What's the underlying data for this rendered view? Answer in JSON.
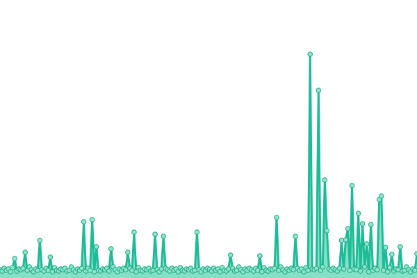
{
  "chart_data": {
    "type": "line",
    "title": "",
    "xlabel": "",
    "ylabel": "",
    "grid": false,
    "area_fill": true,
    "markers": true,
    "ylim": [
      0,
      320
    ],
    "colors": {
      "line": "#1dbb96",
      "marker_fill": "#8fe3c9",
      "marker_stroke": "#1aa987",
      "area": "#86dfc7"
    },
    "series": [
      {
        "values": [
          4,
          2,
          6,
          3,
          5,
          1,
          7,
          20,
          2,
          5,
          4,
          6,
          29,
          3,
          8,
          4,
          1,
          5,
          3,
          46,
          4,
          2,
          6,
          3,
          22,
          1,
          7,
          3,
          2,
          5,
          4,
          6,
          2,
          3,
          8,
          4,
          1,
          5,
          3,
          6,
          73,
          2,
          6,
          3,
          76,
          1,
          37,
          3,
          2,
          5,
          4,
          6,
          2,
          34,
          8,
          4,
          1,
          5,
          3,
          6,
          4,
          29,
          6,
          3,
          58,
          1,
          7,
          3,
          2,
          5,
          4,
          6,
          2,
          3,
          55,
          4,
          1,
          5,
          52,
          6,
          4,
          2,
          6,
          3,
          5,
          1,
          7,
          3,
          2,
          5,
          4,
          6,
          2,
          3,
          58,
          4,
          1,
          5,
          3,
          6,
          4,
          2,
          6,
          3,
          5,
          1,
          7,
          3,
          2,
          5,
          25,
          6,
          2,
          3,
          8,
          4,
          1,
          5,
          3,
          6,
          4,
          2,
          6,
          3,
          24,
          1,
          7,
          3,
          2,
          5,
          4,
          6,
          79,
          3,
          8,
          4,
          1,
          5,
          3,
          6,
          4,
          52,
          6,
          3,
          5,
          1,
          7,
          3,
          314,
          5,
          4,
          6,
          262,
          3,
          8,
          133,
          60,
          5,
          3,
          6,
          4,
          2,
          6,
          46,
          5,
          47,
          63,
          3,
          125,
          5,
          4,
          85,
          2,
          70,
          8,
          41,
          1,
          69,
          3,
          6,
          4,
          105,
          110,
          3,
          36,
          1,
          7,
          26,
          2,
          5,
          4,
          37,
          2,
          3,
          8,
          4,
          1,
          5,
          3,
          27
        ]
      }
    ]
  }
}
